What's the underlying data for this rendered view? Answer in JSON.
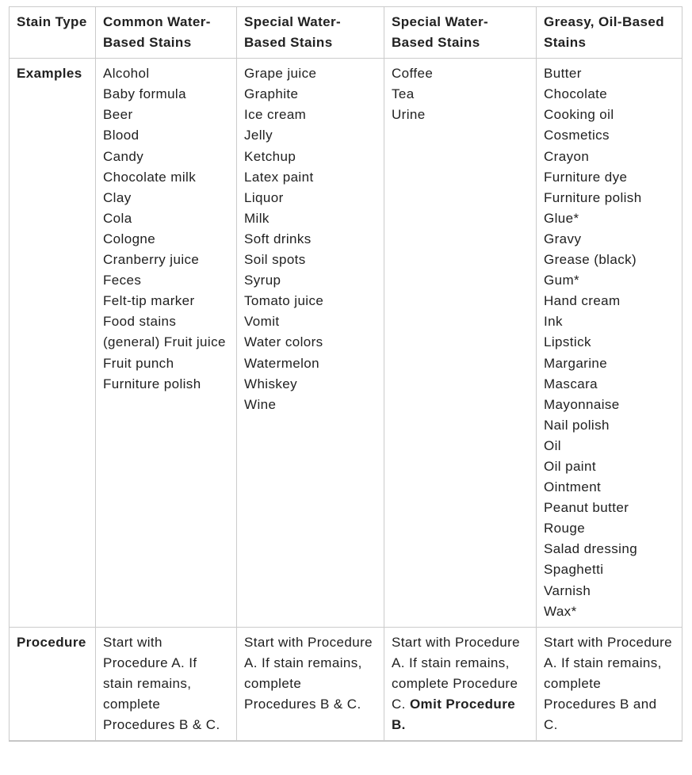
{
  "colors": {
    "text": "#212121",
    "border": "#cbcbcb",
    "background": "#ffffff"
  },
  "table": {
    "columns": [
      {
        "header": "Stain Type"
      },
      {
        "header": "Common Water-Based Stains"
      },
      {
        "header": "Special Water-Based Stains"
      },
      {
        "header": "Special Water-Based Stains"
      },
      {
        "header": "Greasy, Oil-Based Stains"
      }
    ],
    "row_labels": {
      "examples": "Examples",
      "procedure": "Procedure"
    },
    "examples": [
      [
        "Alcohol",
        "Baby formula",
        "Beer",
        "Blood",
        "Candy",
        "Chocolate milk",
        "Clay",
        "Cola",
        "Cologne",
        "Cranberry juice",
        "Feces",
        "Felt-tip marker",
        "Food stains (general) Fruit juice",
        "Fruit punch",
        "Furniture polish"
      ],
      [
        "Grape juice",
        "Graphite",
        "Ice cream",
        "Jelly",
        "Ketchup",
        "Latex paint",
        "Liquor",
        "Milk",
        "Soft drinks",
        "Soil spots",
        "Syrup",
        "Tomato juice",
        "Vomit",
        "Water colors",
        "Watermelon",
        "Whiskey",
        "Wine"
      ],
      [
        "Coffee",
        "Tea",
        "Urine"
      ],
      [
        "Butter",
        "Chocolate",
        "Cooking oil",
        "Cosmetics",
        "Crayon",
        "Furniture dye",
        "Furniture polish",
        "Glue*",
        "Gravy",
        "Grease (black)",
        "Gum*",
        "Hand cream",
        "Ink",
        "Lipstick",
        "Margarine",
        "Mascara",
        "Mayonnaise",
        "Nail polish",
        "Oil",
        "Oil paint",
        "Ointment",
        "Peanut butter",
        "Rouge",
        "Salad dressing",
        "Spaghetti",
        "Varnish",
        "Wax*"
      ]
    ],
    "procedures": [
      {
        "text": "Start with Procedure A. If stain remains, complete Procedures B & C.",
        "bold": ""
      },
      {
        "text": "Start with Procedure A. If stain remains, complete Procedures B & C.",
        "bold": ""
      },
      {
        "text": "Start with Procedure A. If stain remains, complete Procedure C. ",
        "bold": "Omit Procedure B."
      },
      {
        "text": "Start with Procedure A. If stain remains, complete Procedures B and C.",
        "bold": ""
      }
    ]
  }
}
